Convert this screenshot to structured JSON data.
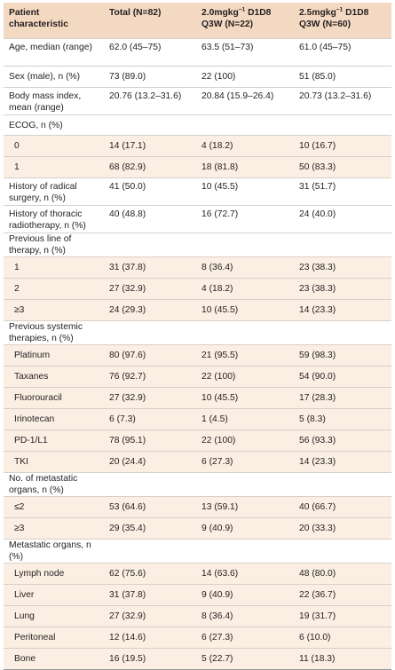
{
  "header": {
    "col1": "Patient characteristic",
    "col2": "Total (N=82)",
    "col3_a": "2.0mgkg",
    "col3_sup": "−1",
    "col3_b": " D1D8 Q3W (N=22)",
    "col4_a": "2.5mgkg",
    "col4_sup": "−1",
    "col4_b": " D1D8 Q3W (N=60)"
  },
  "rows": [
    {
      "kind": "tall",
      "cells": [
        "Age, median (range)",
        "62.0 (45–75)",
        "63.5 (51–73)",
        "61.0 (45–75)"
      ]
    },
    {
      "kind": "row",
      "cells": [
        "Sex (male), n (%)",
        "73 (89.0)",
        "22 (100)",
        "51 (85.0)"
      ]
    },
    {
      "kind": "tall",
      "cells": [
        "Body mass index, mean (range)",
        "20.76 (13.2–31.6)",
        "20.84 (15.9–26.4)",
        "20.73 (13.2–31.6)"
      ]
    },
    {
      "kind": "section",
      "cells": [
        "ECOG, n (%)",
        "",
        "",
        ""
      ]
    },
    {
      "kind": "sub",
      "cells": [
        "0",
        "14 (17.1)",
        "4 (18.2)",
        "10 (16.7)"
      ]
    },
    {
      "kind": "sub",
      "cells": [
        "1",
        "68 (82.9)",
        "18 (81.8)",
        "50 (83.3)"
      ]
    },
    {
      "kind": "tall",
      "cells": [
        "History of radical surgery, n (%)",
        "41 (50.0)",
        "10 (45.5)",
        "31 (51.7)"
      ]
    },
    {
      "kind": "tall",
      "cells": [
        "History of thoracic radiotherapy, n (%)",
        "40 (48.8)",
        "16 (72.7)",
        "24 (40.0)"
      ]
    },
    {
      "kind": "section",
      "cells": [
        "Previous line of therapy, n (%)",
        "",
        "",
        ""
      ]
    },
    {
      "kind": "sub",
      "cells": [
        "1",
        "31 (37.8)",
        "8 (36.4)",
        "23 (38.3)"
      ]
    },
    {
      "kind": "sub",
      "cells": [
        "2",
        "27 (32.9)",
        "4 (18.2)",
        "23 (38.3)"
      ]
    },
    {
      "kind": "sub",
      "cells": [
        "≥3",
        "24 (29.3)",
        "10 (45.5)",
        "14 (23.3)"
      ]
    },
    {
      "kind": "section",
      "cells": [
        "Previous systemic therapies, n (%)",
        "",
        "",
        ""
      ]
    },
    {
      "kind": "sub",
      "cells": [
        "Platinum",
        "80 (97.6)",
        "21 (95.5)",
        "59 (98.3)"
      ]
    },
    {
      "kind": "sub",
      "cells": [
        "Taxanes",
        "76 (92.7)",
        "22 (100)",
        "54 (90.0)"
      ]
    },
    {
      "kind": "sub",
      "cells": [
        "Fluorouracil",
        "27 (32.9)",
        "10 (45.5)",
        "17 (28.3)"
      ]
    },
    {
      "kind": "sub",
      "cells": [
        "Irinotecan",
        "6 (7.3)",
        "1 (4.5)",
        "5 (8.3)"
      ]
    },
    {
      "kind": "sub",
      "cells": [
        "PD-1/L1",
        "78 (95.1)",
        "22 (100)",
        "56 (93.3)"
      ]
    },
    {
      "kind": "sub",
      "cells": [
        "TKI",
        "20 (24.4)",
        "6 (27.3)",
        "14 (23.3)"
      ]
    },
    {
      "kind": "section",
      "cells": [
        "No. of metastatic organs, n (%)",
        "",
        "",
        ""
      ]
    },
    {
      "kind": "sub",
      "cells": [
        "≤2",
        "53 (64.6)",
        "13 (59.1)",
        "40 (66.7)"
      ]
    },
    {
      "kind": "sub",
      "cells": [
        "≥3",
        "29 (35.4)",
        "9 (40.9)",
        "20 (33.3)"
      ]
    },
    {
      "kind": "section",
      "cells": [
        "Metastatic organs, n (%)",
        "",
        "",
        ""
      ]
    },
    {
      "kind": "sub",
      "cells": [
        "Lymph node",
        "62 (75.6)",
        "14 (63.6)",
        "48 (80.0)"
      ]
    },
    {
      "kind": "sub",
      "cells": [
        "Liver",
        "31 (37.8)",
        "9 (40.9)",
        "22 (36.7)"
      ]
    },
    {
      "kind": "sub",
      "cells": [
        "Lung",
        "27 (32.9)",
        "8 (36.4)",
        "19 (31.7)"
      ]
    },
    {
      "kind": "sub",
      "cells": [
        "Peritoneal",
        "12 (14.6)",
        "6 (27.3)",
        "6 (10.0)"
      ]
    },
    {
      "kind": "sub",
      "cells": [
        "Bone",
        "16 (19.5)",
        "5 (22.7)",
        "11 (18.3)"
      ]
    }
  ],
  "colors": {
    "header_bg": "#f4d9c2",
    "subrow_bg": "#fbeee3",
    "rule": "#d9d0c8"
  }
}
